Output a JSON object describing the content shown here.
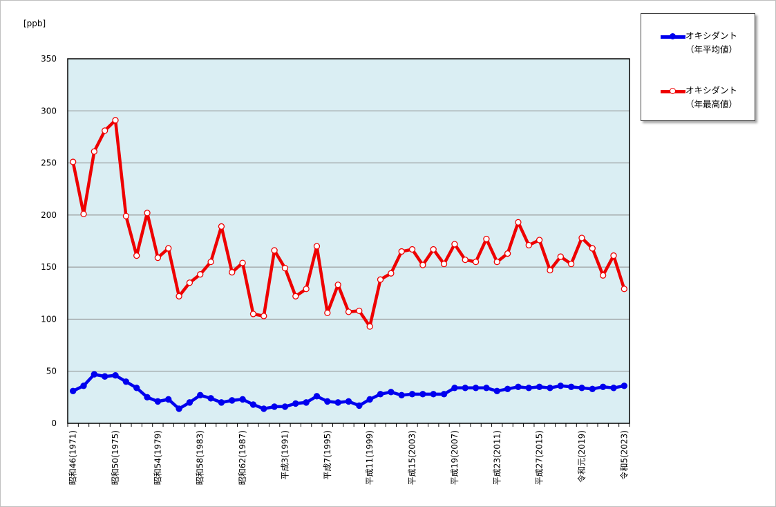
{
  "chart_data": {
    "type": "line",
    "unit_label": "[ppb]",
    "ylim": [
      0,
      350
    ],
    "y_ticks": [
      0,
      50,
      100,
      150,
      200,
      250,
      300,
      350
    ],
    "grid": "horizontal",
    "legend_position": "top-right",
    "x": [
      1971,
      1972,
      1973,
      1974,
      1975,
      1976,
      1977,
      1978,
      1979,
      1980,
      1981,
      1982,
      1983,
      1984,
      1985,
      1986,
      1987,
      1988,
      1989,
      1990,
      1991,
      1992,
      1993,
      1994,
      1995,
      1996,
      1997,
      1998,
      1999,
      2000,
      2001,
      2002,
      2003,
      2004,
      2005,
      2006,
      2007,
      2008,
      2009,
      2010,
      2011,
      2012,
      2013,
      2014,
      2015,
      2016,
      2017,
      2018,
      2019,
      2020,
      2021,
      2022,
      2023
    ],
    "x_tick_labels": [
      {
        "year": 1971,
        "label": "昭和46(1971)"
      },
      {
        "year": 1975,
        "label": "昭和50(1975)"
      },
      {
        "year": 1979,
        "label": "昭和54(1979)"
      },
      {
        "year": 1983,
        "label": "昭和58(1983)"
      },
      {
        "year": 1987,
        "label": "昭和62(1987)"
      },
      {
        "year": 1991,
        "label": "平成3(1991)"
      },
      {
        "year": 1995,
        "label": "平成7(1995)"
      },
      {
        "year": 1999,
        "label": "平成11(1999)"
      },
      {
        "year": 2003,
        "label": "平成15(2003)"
      },
      {
        "year": 2007,
        "label": "平成19(2007)"
      },
      {
        "year": 2011,
        "label": "平成23(2011)"
      },
      {
        "year": 2015,
        "label": "平成27(2015)"
      },
      {
        "year": 2019,
        "label": "令和元(2019)"
      },
      {
        "year": 2023,
        "label": "令和5(2023)"
      }
    ],
    "series": [
      {
        "name_line1": "オキシダント",
        "name_line2": "（年平均値）",
        "color": "#0000ee",
        "marker": "filled",
        "values": [
          31,
          36,
          47,
          45,
          46,
          40,
          34,
          25,
          21,
          23,
          14,
          20,
          27,
          24,
          20,
          22,
          23,
          18,
          14,
          16,
          16,
          19,
          20,
          26,
          21,
          20,
          21,
          17,
          23,
          28,
          30,
          27,
          28,
          28,
          28,
          28,
          34,
          34,
          34,
          34,
          31,
          33,
          35,
          34,
          35,
          34,
          36,
          35,
          34,
          33,
          35,
          34,
          36
        ]
      },
      {
        "name_line1": "オキシダント",
        "name_line2": "（年最高値）",
        "color": "#ee0000",
        "marker": "hollow",
        "values": [
          251,
          201,
          261,
          281,
          291,
          199,
          161,
          202,
          159,
          168,
          122,
          135,
          143,
          155,
          189,
          145,
          154,
          105,
          103,
          166,
          149,
          122,
          129,
          170,
          106,
          133,
          107,
          108,
          93,
          138,
          144,
          165,
          167,
          152,
          167,
          153,
          172,
          157,
          155,
          177,
          155,
          163,
          193,
          171,
          176,
          147,
          160,
          153,
          178,
          168,
          142,
          161,
          129
        ]
      }
    ]
  }
}
